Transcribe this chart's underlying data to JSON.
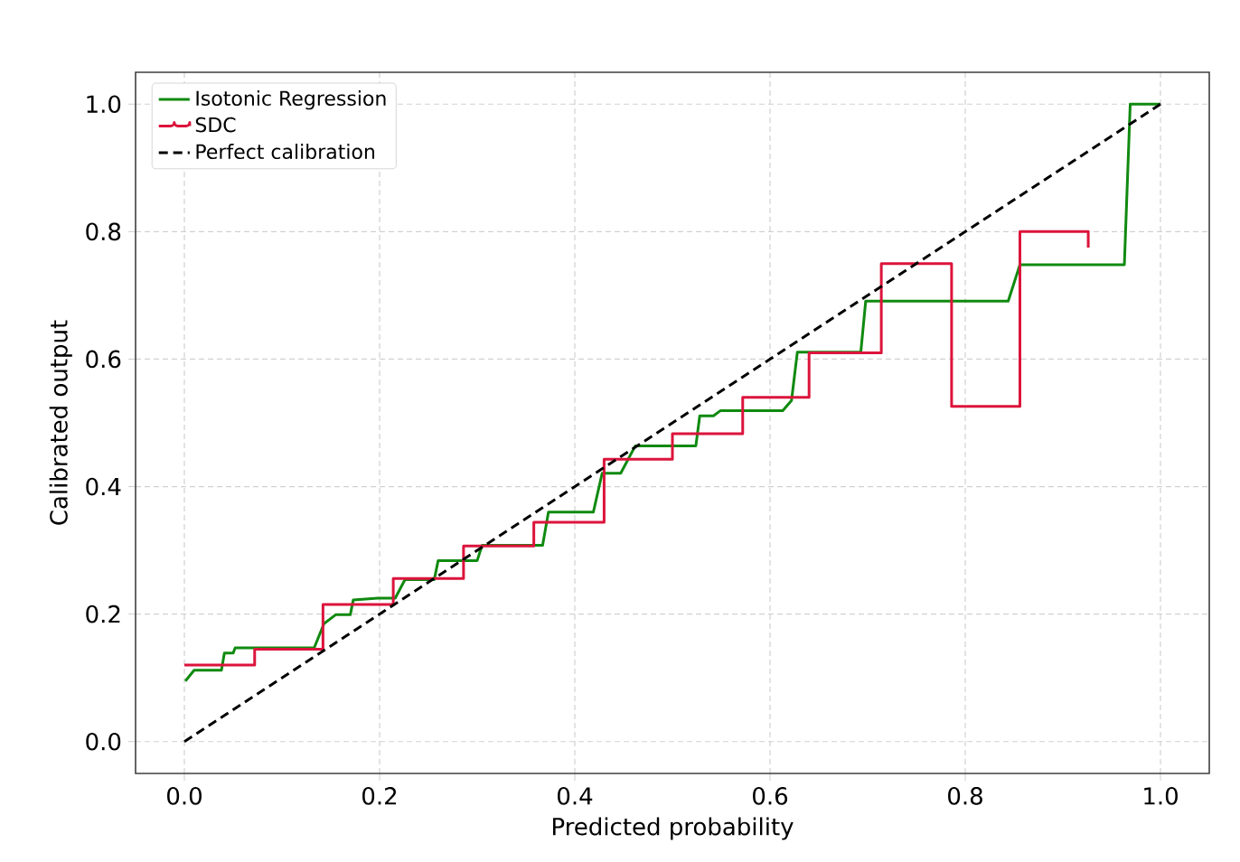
{
  "chart_data": {
    "type": "line",
    "xlabel": "Predicted probability",
    "ylabel": "Calibrated output",
    "xlim": [
      -0.05,
      1.05
    ],
    "ylim": [
      -0.05,
      1.05
    ],
    "xticks": [
      {
        "value": 0,
        "label": "0.0"
      },
      0.2,
      0.4,
      0.6,
      0.8,
      {
        "value": 1,
        "label": "1.0"
      }
    ],
    "yticks": [
      {
        "value": 0,
        "label": "0.0"
      },
      0.2,
      0.4,
      0.6,
      0.8,
      {
        "value": 1,
        "label": "1.0"
      }
    ],
    "grid": true,
    "legend": "top left",
    "series": [
      {
        "name": "Isotonic Regression",
        "color": "#108a10",
        "x": [
          0.001,
          0.01,
          0.038,
          0.041,
          0.05,
          0.052,
          0.133,
          0.143,
          0.155,
          0.17,
          0.173,
          0.198,
          0.216,
          0.226,
          0.256,
          0.26,
          0.3,
          0.305,
          0.367,
          0.373,
          0.419,
          0.428,
          0.447,
          0.462,
          0.524,
          0.528,
          0.542,
          0.549,
          0.613,
          0.622,
          0.628,
          0.693,
          0.698,
          0.844,
          0.856,
          0.963,
          0.969,
          1.0
        ],
        "values": [
          0.095,
          0.112,
          0.112,
          0.139,
          0.139,
          0.147,
          0.147,
          0.185,
          0.199,
          0.199,
          0.222,
          0.225,
          0.225,
          0.254,
          0.254,
          0.284,
          0.284,
          0.308,
          0.308,
          0.36,
          0.36,
          0.421,
          0.421,
          0.464,
          0.464,
          0.511,
          0.511,
          0.519,
          0.519,
          0.535,
          0.611,
          0.611,
          0.691,
          0.691,
          0.748,
          0.748,
          1.0,
          1.0
        ]
      },
      {
        "name": "SDC",
        "color": "#dc143c",
        "type": "step",
        "x": [
          0,
          0.072,
          0.142,
          0.214,
          0.286,
          0.358,
          0.43,
          0.5,
          0.572,
          0.64,
          0.714,
          0.786,
          0.856,
          0.926
        ],
        "values": [
          0.12,
          0.145,
          0.215,
          0.256,
          0.307,
          0.344,
          0.443,
          0.483,
          0.54,
          0.61,
          0.75,
          0.526,
          0.8,
          0.775
        ]
      },
      {
        "name": "Perfect calibration",
        "color": "#000000",
        "line_style": "dashed",
        "x": [
          0,
          1
        ],
        "values": [
          0,
          1
        ]
      }
    ]
  }
}
